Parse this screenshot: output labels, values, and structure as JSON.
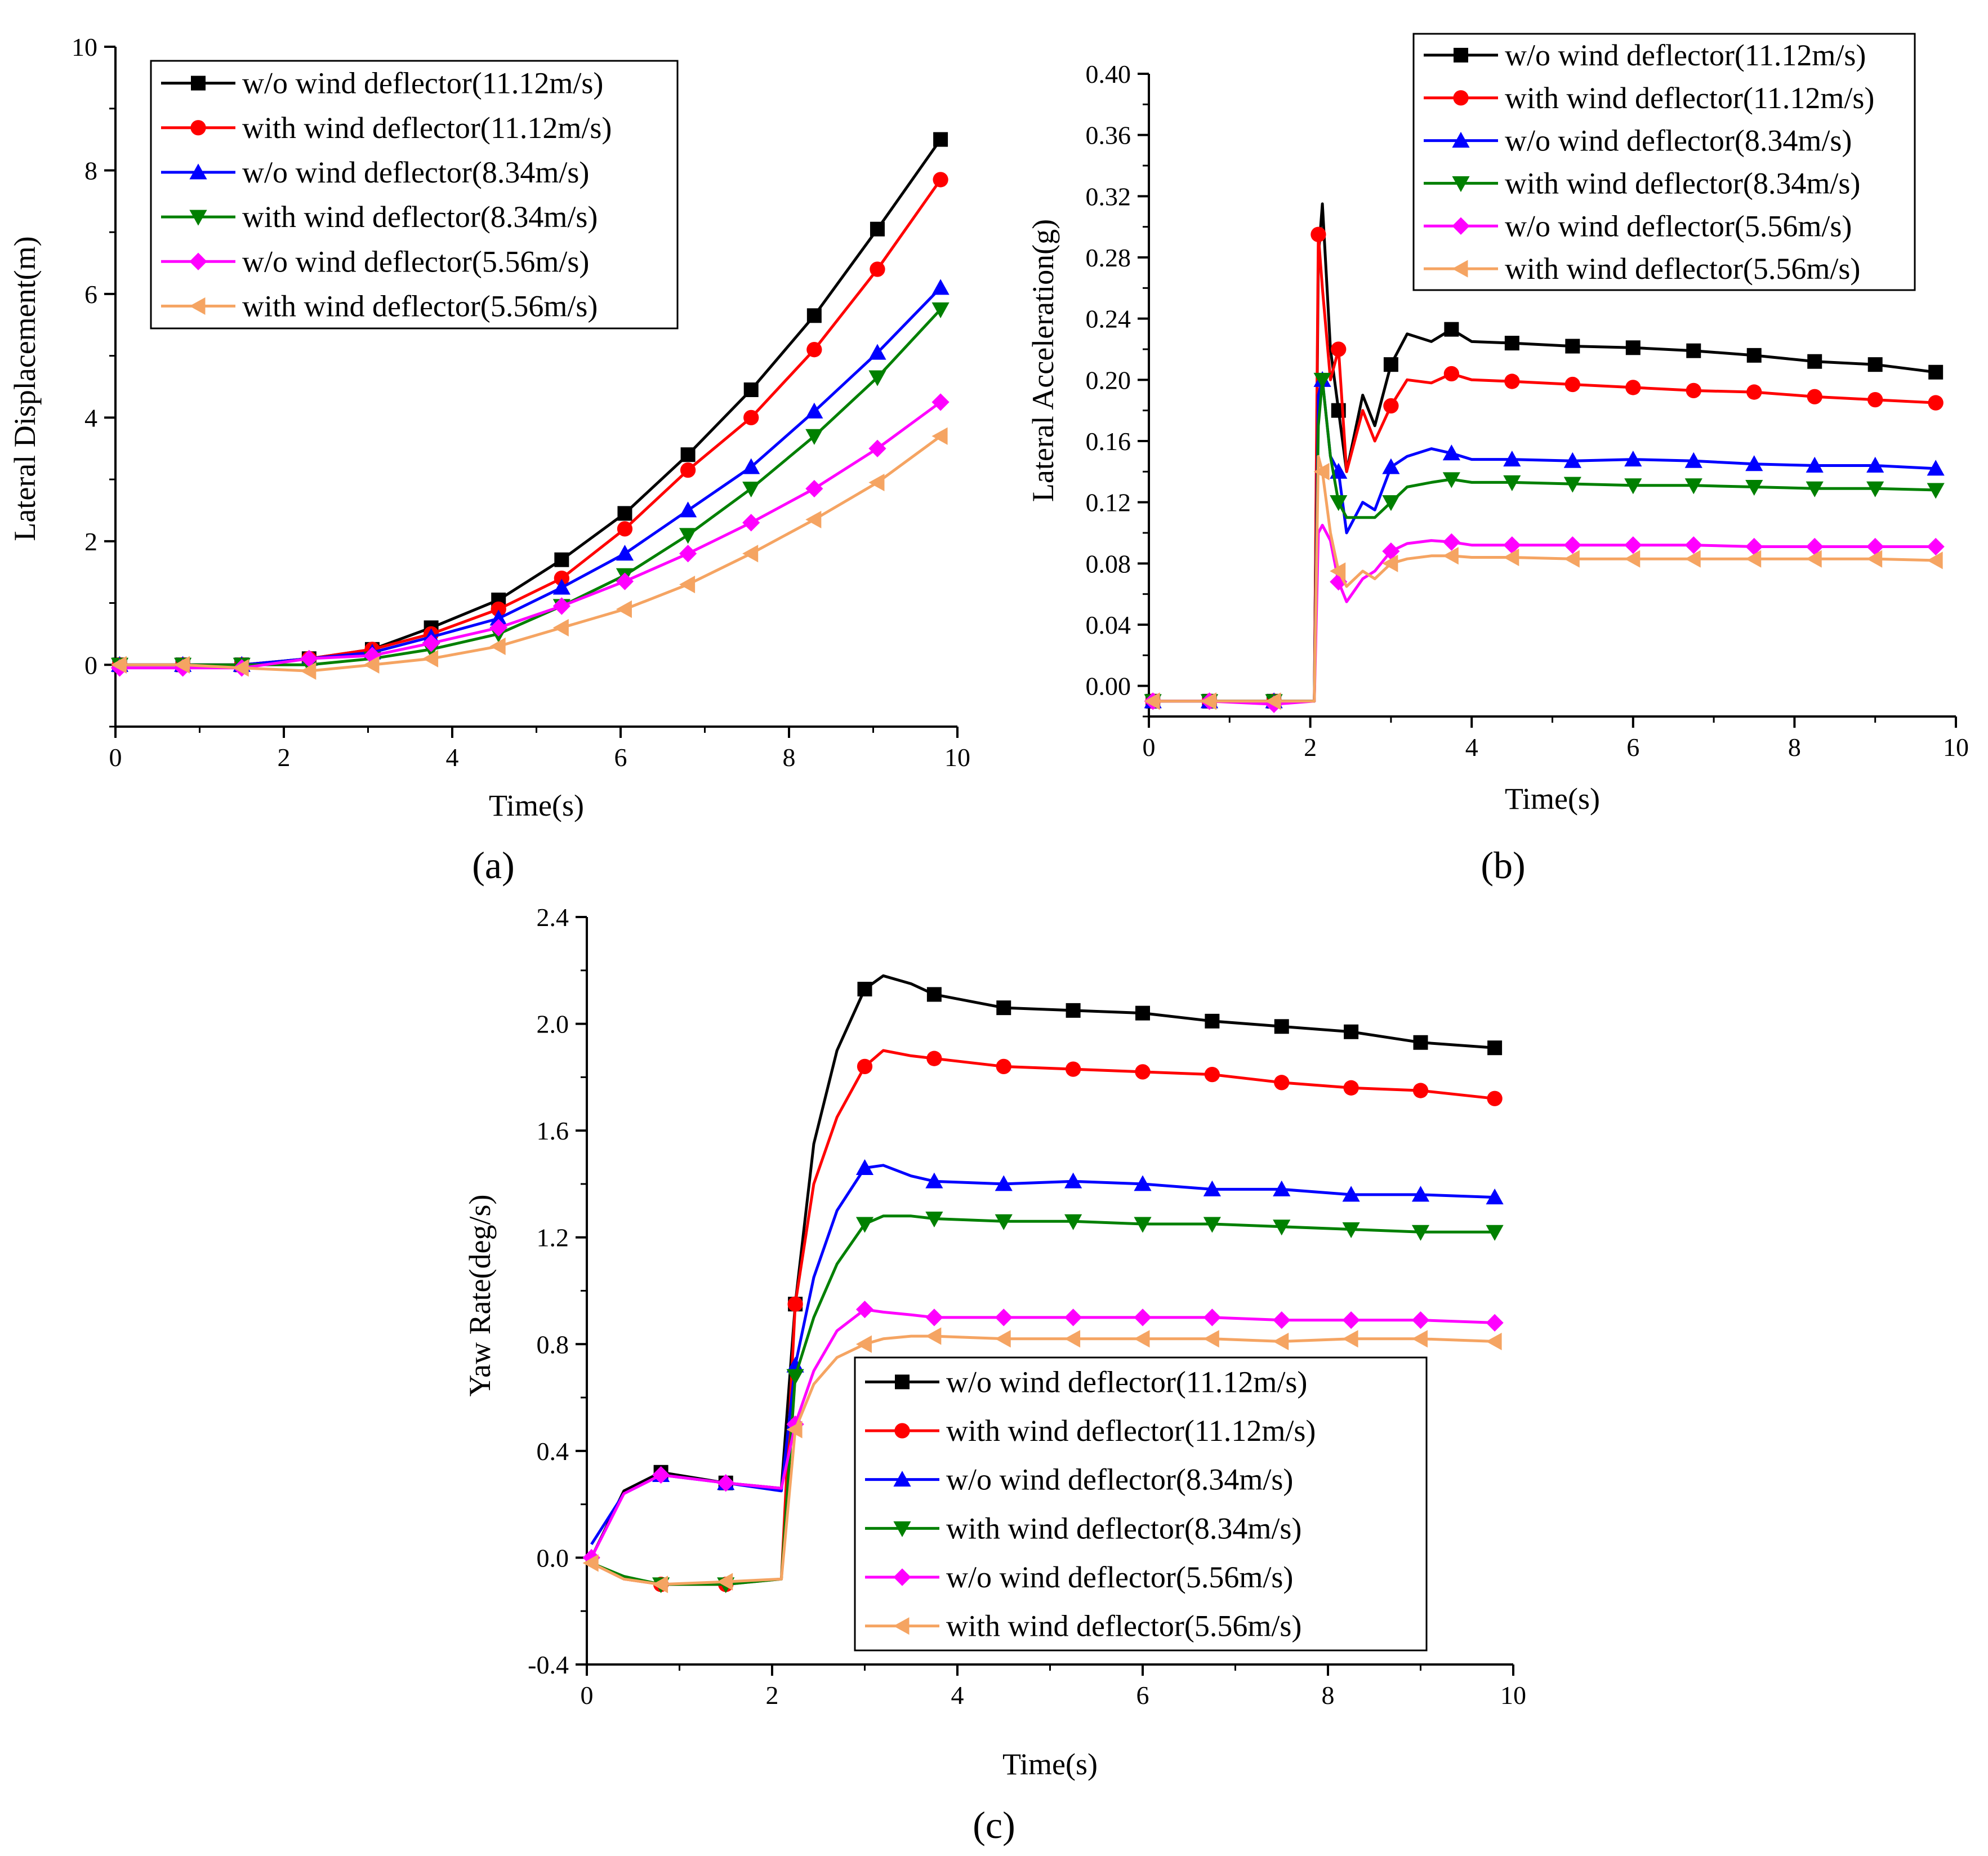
{
  "colors": {
    "s1": "#000000",
    "s2": "#ff0000",
    "s3": "#0000ff",
    "s4": "#008000",
    "s5": "#ff00ff",
    "s6": "#f5a462"
  },
  "chart_data": [
    {
      "id": "a",
      "type": "line",
      "panel_label": "(a)",
      "xlabel": "Time(s)",
      "ylabel": "Lateral Displacement(m)",
      "xlim": [
        0,
        10
      ],
      "ylim": [
        -1,
        10
      ],
      "xticks": [
        0,
        2,
        4,
        6,
        8,
        10
      ],
      "yticks": [
        0,
        2,
        4,
        6,
        8,
        10
      ],
      "x": [
        0.05,
        0.8,
        1.5,
        2.3,
        3.05,
        3.75,
        4.55,
        5.3,
        6.05,
        6.8,
        7.55,
        8.3,
        9.05,
        9.8
      ],
      "legend": "top-left",
      "series": [
        {
          "name": "w/o wind deflector(11.12m/s)",
          "color_key": "s1",
          "marker": "square",
          "values": [
            0.0,
            0.0,
            0.0,
            0.1,
            0.25,
            0.6,
            1.05,
            1.7,
            2.45,
            3.4,
            4.45,
            5.65,
            7.05,
            8.5
          ]
        },
        {
          "name": "with wind deflector(11.12m/s)",
          "color_key": "s2",
          "marker": "circle",
          "values": [
            0.0,
            0.0,
            0.0,
            0.1,
            0.25,
            0.5,
            0.9,
            1.4,
            2.2,
            3.15,
            4.0,
            5.1,
            6.4,
            7.85
          ]
        },
        {
          "name": "w/o wind deflector(8.34m/s)",
          "color_key": "s3",
          "marker": "triangle-up",
          "values": [
            0.0,
            0.0,
            0.0,
            0.1,
            0.2,
            0.45,
            0.75,
            1.25,
            1.8,
            2.5,
            3.2,
            4.1,
            5.05,
            6.1
          ]
        },
        {
          "name": "with wind deflector(8.34m/s)",
          "color_key": "s4",
          "marker": "triangle-down",
          "values": [
            0.0,
            0.0,
            0.0,
            0.0,
            0.1,
            0.25,
            0.5,
            0.95,
            1.45,
            2.1,
            2.85,
            3.7,
            4.65,
            5.75
          ]
        },
        {
          "name": "w/o wind deflector(5.56m/s)",
          "color_key": "s5",
          "marker": "diamond",
          "values": [
            -0.05,
            -0.05,
            -0.05,
            0.1,
            0.15,
            0.35,
            0.6,
            0.95,
            1.35,
            1.8,
            2.3,
            2.85,
            3.5,
            4.25
          ]
        },
        {
          "name": "with wind deflector(5.56m/s)",
          "color_key": "s6",
          "marker": "triangle-left",
          "values": [
            0.0,
            0.0,
            -0.05,
            -0.1,
            0.0,
            0.1,
            0.3,
            0.6,
            0.9,
            1.3,
            1.8,
            2.35,
            2.95,
            3.7
          ]
        }
      ]
    },
    {
      "id": "b",
      "type": "line",
      "panel_label": "(b)",
      "xlabel": "Time(s)",
      "ylabel": "Lateral Acceleration(g)",
      "xlim": [
        0,
        10
      ],
      "ylim": [
        -0.02,
        0.4
      ],
      "xticks": [
        0,
        2,
        4,
        6,
        8,
        10
      ],
      "yticks": [
        0.0,
        0.04,
        0.08,
        0.12,
        0.16,
        0.2,
        0.24,
        0.28,
        0.32,
        0.36,
        0.4
      ],
      "ytick_decimals": 2,
      "legend": "top-right",
      "series": [
        {
          "name": "w/o wind deflector(11.12m/s)",
          "color_key": "s1",
          "marker": "square",
          "x": [
            0.05,
            0.75,
            1.55,
            2.05,
            2.1,
            2.15,
            2.25,
            2.35,
            2.45,
            2.65,
            2.8,
            3.0,
            3.2,
            3.5,
            3.75,
            4.0,
            4.5,
            5.25,
            6.0,
            6.75,
            7.5,
            8.25,
            9.0,
            9.75
          ],
          "markers_at": [
            0,
            1,
            2,
            7,
            11,
            14,
            16,
            17,
            18,
            19,
            20,
            21,
            22,
            23
          ],
          "values": [
            -0.01,
            -0.01,
            -0.01,
            -0.01,
            0.28,
            0.315,
            0.22,
            0.18,
            0.14,
            0.19,
            0.17,
            0.21,
            0.23,
            0.225,
            0.233,
            0.225,
            0.224,
            0.222,
            0.221,
            0.219,
            0.216,
            0.212,
            0.21,
            0.205
          ]
        },
        {
          "name": "with wind deflector(11.12m/s)",
          "color_key": "s2",
          "marker": "circle",
          "x": [
            0.05,
            0.75,
            1.55,
            2.05,
            2.1,
            2.15,
            2.25,
            2.35,
            2.45,
            2.65,
            2.8,
            3.0,
            3.2,
            3.5,
            3.75,
            4.0,
            4.5,
            5.25,
            6.0,
            6.75,
            7.5,
            8.25,
            9.0,
            9.75
          ],
          "markers_at": [
            0,
            1,
            2,
            4,
            7,
            11,
            14,
            16,
            17,
            18,
            19,
            20,
            21,
            22,
            23
          ],
          "values": [
            -0.01,
            -0.01,
            -0.01,
            -0.01,
            0.295,
            0.26,
            0.2,
            0.22,
            0.14,
            0.18,
            0.16,
            0.183,
            0.2,
            0.198,
            0.204,
            0.2,
            0.199,
            0.197,
            0.195,
            0.193,
            0.192,
            0.189,
            0.187,
            0.185
          ]
        },
        {
          "name": "w/o wind deflector(8.34m/s)",
          "color_key": "s3",
          "marker": "triangle-up",
          "x": [
            0.05,
            0.75,
            1.55,
            2.05,
            2.1,
            2.15,
            2.25,
            2.35,
            2.45,
            2.65,
            2.8,
            3.0,
            3.2,
            3.5,
            3.75,
            4.0,
            4.5,
            5.25,
            6.0,
            6.75,
            7.5,
            8.25,
            9.0,
            9.75
          ],
          "markers_at": [
            0,
            1,
            2,
            5,
            7,
            11,
            14,
            16,
            17,
            18,
            19,
            20,
            21,
            22,
            23
          ],
          "values": [
            -0.01,
            -0.01,
            -0.01,
            -0.01,
            0.19,
            0.2,
            0.15,
            0.14,
            0.1,
            0.12,
            0.115,
            0.143,
            0.15,
            0.155,
            0.152,
            0.148,
            0.148,
            0.147,
            0.148,
            0.147,
            0.145,
            0.144,
            0.144,
            0.142
          ]
        },
        {
          "name": "with wind deflector(8.34m/s)",
          "color_key": "s4",
          "marker": "triangle-down",
          "x": [
            0.05,
            0.75,
            1.55,
            2.05,
            2.1,
            2.15,
            2.25,
            2.35,
            2.45,
            2.65,
            2.8,
            3.0,
            3.2,
            3.5,
            3.75,
            4.0,
            4.5,
            5.25,
            6.0,
            6.75,
            7.5,
            8.25,
            9.0,
            9.75
          ],
          "markers_at": [
            0,
            1,
            2,
            5,
            7,
            11,
            14,
            16,
            17,
            18,
            19,
            20,
            21,
            22,
            23
          ],
          "values": [
            -0.01,
            -0.01,
            -0.01,
            -0.01,
            0.17,
            0.2,
            0.15,
            0.12,
            0.11,
            0.11,
            0.11,
            0.12,
            0.13,
            0.133,
            0.135,
            0.133,
            0.133,
            0.132,
            0.131,
            0.131,
            0.13,
            0.129,
            0.129,
            0.128
          ]
        },
        {
          "name": "w/o wind deflector(5.56m/s)",
          "color_key": "s5",
          "marker": "diamond",
          "x": [
            0.05,
            0.75,
            1.55,
            2.05,
            2.1,
            2.15,
            2.25,
            2.35,
            2.45,
            2.65,
            2.8,
            3.0,
            3.2,
            3.5,
            3.75,
            4.0,
            4.5,
            5.25,
            6.0,
            6.75,
            7.5,
            8.25,
            9.0,
            9.75
          ],
          "markers_at": [
            0,
            1,
            2,
            7,
            11,
            14,
            16,
            17,
            18,
            19,
            20,
            21,
            22,
            23
          ],
          "values": [
            -0.01,
            -0.01,
            -0.012,
            -0.01,
            0.1,
            0.105,
            0.095,
            0.068,
            0.055,
            0.07,
            0.075,
            0.088,
            0.093,
            0.095,
            0.094,
            0.092,
            0.092,
            0.092,
            0.092,
            0.092,
            0.091,
            0.091,
            0.091,
            0.091
          ]
        },
        {
          "name": "with wind deflector(5.56m/s)",
          "color_key": "s6",
          "marker": "triangle-left",
          "x": [
            0.05,
            0.75,
            1.55,
            2.05,
            2.1,
            2.15,
            2.25,
            2.35,
            2.45,
            2.65,
            2.8,
            3.0,
            3.2,
            3.5,
            3.75,
            4.0,
            4.5,
            5.25,
            6.0,
            6.75,
            7.5,
            8.25,
            9.0,
            9.75
          ],
          "markers_at": [
            0,
            1,
            2,
            5,
            7,
            11,
            14,
            16,
            17,
            18,
            19,
            20,
            21,
            22,
            23
          ],
          "values": [
            -0.01,
            -0.01,
            -0.01,
            -0.01,
            0.15,
            0.14,
            0.1,
            0.075,
            0.065,
            0.075,
            0.07,
            0.08,
            0.083,
            0.085,
            0.085,
            0.084,
            0.084,
            0.083,
            0.083,
            0.083,
            0.083,
            0.083,
            0.083,
            0.082
          ]
        }
      ]
    },
    {
      "id": "c",
      "type": "line",
      "panel_label": "(c)",
      "xlabel": "Time(s)",
      "ylabel": "Yaw Rate(deg/s)",
      "xlim": [
        0,
        10
      ],
      "ylim": [
        -0.4,
        2.4
      ],
      "xticks": [
        0,
        2,
        4,
        6,
        8,
        10
      ],
      "yticks": [
        -0.4,
        0.0,
        0.4,
        0.8,
        1.2,
        1.6,
        2.0,
        2.4
      ],
      "ytick_decimals": 1,
      "legend": "bottom-right",
      "series": [
        {
          "name": "w/o wind deflector(11.12m/s)",
          "color_key": "s1",
          "marker": "square",
          "x": [
            0.05,
            0.4,
            0.8,
            1.5,
            2.1,
            2.25,
            2.45,
            2.7,
            3.0,
            3.2,
            3.5,
            3.75,
            4.5,
            5.25,
            6.0,
            6.75,
            7.5,
            8.25,
            9.0,
            9.8
          ],
          "markers_at": [
            2,
            3,
            5,
            8,
            11,
            12,
            13,
            14,
            15,
            16,
            17,
            18,
            19
          ],
          "values": [
            0.0,
            0.25,
            0.32,
            0.28,
            0.26,
            0.95,
            1.55,
            1.9,
            2.13,
            2.18,
            2.15,
            2.11,
            2.06,
            2.05,
            2.04,
            2.01,
            1.99,
            1.97,
            1.93,
            1.91
          ]
        },
        {
          "name": "with wind deflector(11.12m/s)",
          "color_key": "s2",
          "marker": "circle",
          "x": [
            0.05,
            0.4,
            0.8,
            1.5,
            2.1,
            2.25,
            2.45,
            2.7,
            3.0,
            3.2,
            3.5,
            3.75,
            4.5,
            5.25,
            6.0,
            6.75,
            7.5,
            8.25,
            9.0,
            9.8
          ],
          "markers_at": [
            2,
            3,
            5,
            8,
            11,
            12,
            13,
            14,
            15,
            16,
            17,
            18,
            19
          ],
          "values": [
            -0.02,
            -0.08,
            -0.1,
            -0.1,
            -0.08,
            0.95,
            1.4,
            1.65,
            1.84,
            1.9,
            1.88,
            1.87,
            1.84,
            1.83,
            1.82,
            1.81,
            1.78,
            1.76,
            1.75,
            1.72
          ]
        },
        {
          "name": "w/o wind deflector(8.34m/s)",
          "color_key": "s3",
          "marker": "triangle-up",
          "x": [
            0.05,
            0.4,
            0.8,
            1.5,
            2.1,
            2.25,
            2.45,
            2.7,
            3.0,
            3.2,
            3.5,
            3.75,
            4.5,
            5.25,
            6.0,
            6.75,
            7.5,
            8.25,
            9.0,
            9.8
          ],
          "markers_at": [
            2,
            3,
            5,
            8,
            11,
            12,
            13,
            14,
            15,
            16,
            17,
            18,
            19
          ],
          "values": [
            0.05,
            0.24,
            0.31,
            0.28,
            0.25,
            0.72,
            1.05,
            1.3,
            1.46,
            1.47,
            1.43,
            1.41,
            1.4,
            1.41,
            1.4,
            1.38,
            1.38,
            1.36,
            1.36,
            1.35
          ]
        },
        {
          "name": "with wind deflector(8.34m/s)",
          "color_key": "s4",
          "marker": "triangle-down",
          "x": [
            0.05,
            0.4,
            0.8,
            1.5,
            2.1,
            2.25,
            2.45,
            2.7,
            3.0,
            3.2,
            3.5,
            3.75,
            4.5,
            5.25,
            6.0,
            6.75,
            7.5,
            8.25,
            9.0,
            9.8
          ],
          "markers_at": [
            2,
            3,
            5,
            8,
            11,
            12,
            13,
            14,
            15,
            16,
            17,
            18,
            19
          ],
          "values": [
            -0.02,
            -0.07,
            -0.1,
            -0.1,
            -0.08,
            0.68,
            0.9,
            1.1,
            1.25,
            1.28,
            1.28,
            1.27,
            1.26,
            1.26,
            1.25,
            1.25,
            1.24,
            1.23,
            1.22,
            1.22
          ]
        },
        {
          "name": "w/o wind deflector(5.56m/s)",
          "color_key": "s5",
          "marker": "diamond",
          "x": [
            0.05,
            0.4,
            0.8,
            1.5,
            2.1,
            2.25,
            2.45,
            2.7,
            3.0,
            3.2,
            3.5,
            3.75,
            4.5,
            5.25,
            6.0,
            6.75,
            7.5,
            8.25,
            9.0,
            9.8
          ],
          "markers_at": [
            0,
            2,
            3,
            5,
            8,
            11,
            12,
            13,
            14,
            15,
            16,
            17,
            18,
            19
          ],
          "values": [
            0.0,
            0.24,
            0.31,
            0.28,
            0.26,
            0.5,
            0.7,
            0.85,
            0.93,
            0.92,
            0.91,
            0.9,
            0.9,
            0.9,
            0.9,
            0.9,
            0.89,
            0.89,
            0.89,
            0.88
          ]
        },
        {
          "name": "with wind deflector(5.56m/s)",
          "color_key": "s6",
          "marker": "triangle-left",
          "x": [
            0.05,
            0.4,
            0.8,
            1.5,
            2.1,
            2.25,
            2.45,
            2.7,
            3.0,
            3.2,
            3.5,
            3.75,
            4.5,
            5.25,
            6.0,
            6.75,
            7.5,
            8.25,
            9.0,
            9.8
          ],
          "markers_at": [
            0,
            2,
            3,
            5,
            8,
            11,
            12,
            13,
            14,
            15,
            16,
            17,
            18,
            19
          ],
          "values": [
            -0.02,
            -0.08,
            -0.1,
            -0.09,
            -0.08,
            0.48,
            0.65,
            0.75,
            0.8,
            0.82,
            0.83,
            0.83,
            0.82,
            0.82,
            0.82,
            0.82,
            0.81,
            0.82,
            0.82,
            0.81
          ]
        }
      ]
    }
  ]
}
